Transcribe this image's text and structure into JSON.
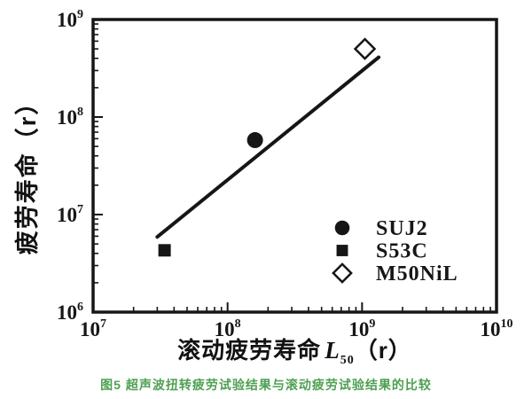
{
  "figure": {
    "caption": "图5 超声波扭转疲劳试验结果与滚动疲劳试验结果的比较",
    "caption_color": "#4FA052",
    "ink_color": "#161616",
    "background_color": "#ffffff"
  },
  "chart_data": {
    "type": "scatter",
    "scale": "log-log",
    "title": "",
    "grid": false,
    "x_axis": {
      "label_prefix": "滚动疲劳寿命",
      "label_var": "L",
      "label_sub": "50",
      "label_suffix": "（r）",
      "label_full": "滚动疲劳寿命 L50（r）",
      "min_exp": 7,
      "max_exp": 10,
      "tick_labels": [
        "10⁷",
        "10⁸",
        "10⁹",
        "10¹⁰"
      ]
    },
    "y_axis": {
      "label": "疲劳寿命（r）",
      "min_exp": 6,
      "max_exp": 9,
      "tick_labels": [
        "10⁶",
        "10⁷",
        "10⁸",
        "10⁹"
      ]
    },
    "series": [
      {
        "name": "SUJ2",
        "marker": "filled-circle",
        "points": [
          {
            "x": 160000000.0,
            "y": 58000000.0
          }
        ]
      },
      {
        "name": "S53C",
        "marker": "filled-square",
        "points": [
          {
            "x": 34000000.0,
            "y": 4300000.0
          }
        ]
      },
      {
        "name": "M50NiL",
        "marker": "open-diamond",
        "points": [
          {
            "x": 1050000000.0,
            "y": 500000000.0
          }
        ]
      }
    ],
    "trend_line": {
      "x1": 30000000.0,
      "y1": 5900000.0,
      "x2": 1330000000.0,
      "y2": 410000000.0
    },
    "legend": {
      "position": "inside-right-lower",
      "items": [
        {
          "marker": "filled-circle",
          "label": "SUJ2"
        },
        {
          "marker": "filled-square",
          "label": "S53C"
        },
        {
          "marker": "open-diamond",
          "label": "M50NiL"
        }
      ]
    }
  }
}
